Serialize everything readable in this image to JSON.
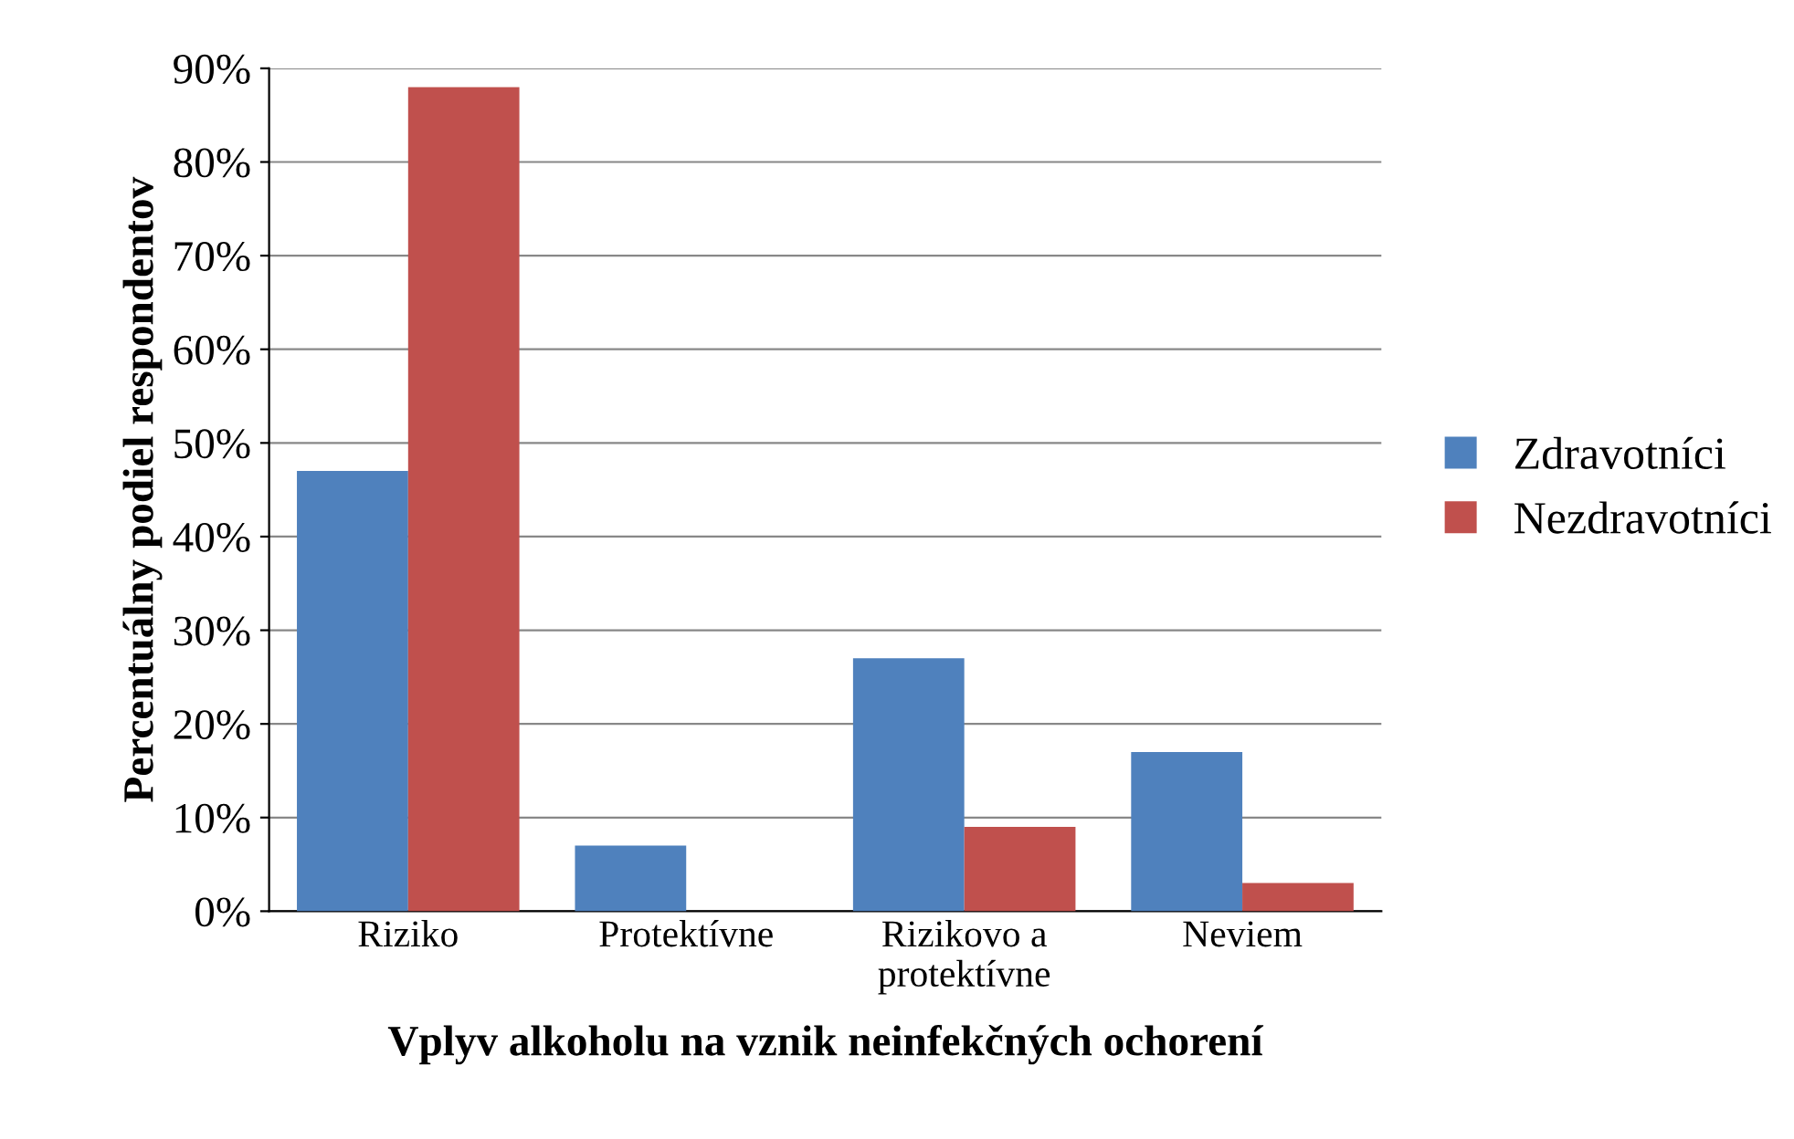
{
  "chart_data": {
    "type": "bar",
    "xlabel": "Vplyv alkoholu na vznik neinfekčných ochorení",
    "ylabel": "Percentuálny podiel respondentov",
    "categories": [
      "Riziko",
      "Protektívne",
      "Rizikovo a\nprotektívne",
      "Neviem"
    ],
    "series": [
      {
        "name": "Zdravotníci",
        "color": "#4f81bd",
        "values": [
          47,
          7,
          27,
          17
        ]
      },
      {
        "name": "Nezdravotníci",
        "color": "#c0504d",
        "values": [
          88,
          0,
          9,
          3
        ]
      }
    ],
    "ylim": [
      0,
      90
    ],
    "yticks": [
      {
        "value": 0,
        "label": "0%"
      },
      {
        "value": 10,
        "label": "10%"
      },
      {
        "value": 20,
        "label": "20%"
      },
      {
        "value": 30,
        "label": "30%"
      },
      {
        "value": 40,
        "label": "40%"
      },
      {
        "value": 50,
        "label": "50%"
      },
      {
        "value": 60,
        "label": "60%"
      },
      {
        "value": 70,
        "label": "70%"
      },
      {
        "value": 80,
        "label": "80%"
      },
      {
        "value": 90,
        "label": "90%"
      }
    ],
    "grid": "y",
    "legend": "right"
  }
}
